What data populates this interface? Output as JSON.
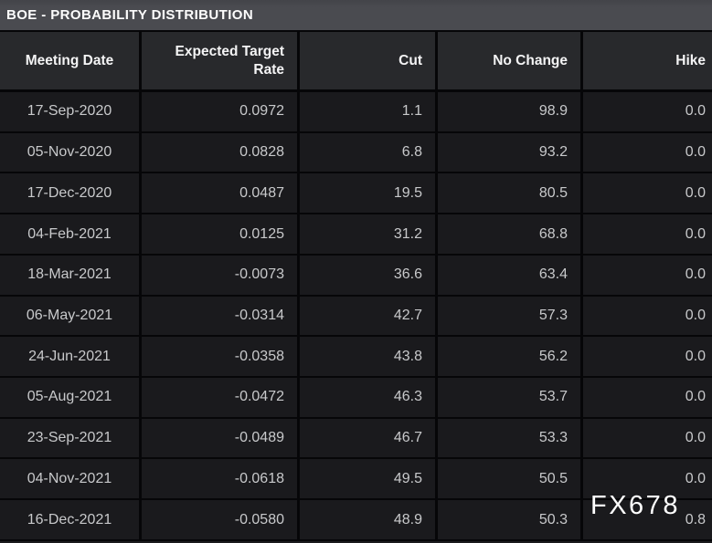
{
  "title": "BOE - PROBABILITY DISTRIBUTION",
  "watermark": "FX678",
  "table": {
    "columns": [
      "Meeting Date",
      "Expected Target Rate",
      "Cut",
      "No Change",
      "Hike"
    ],
    "rows": [
      {
        "meeting_date": "17-Sep-2020",
        "expected_target_rate": "0.0972",
        "cut": "1.1",
        "no_change": "98.9",
        "hike": "0.0"
      },
      {
        "meeting_date": "05-Nov-2020",
        "expected_target_rate": "0.0828",
        "cut": "6.8",
        "no_change": "93.2",
        "hike": "0.0"
      },
      {
        "meeting_date": "17-Dec-2020",
        "expected_target_rate": "0.0487",
        "cut": "19.5",
        "no_change": "80.5",
        "hike": "0.0"
      },
      {
        "meeting_date": "04-Feb-2021",
        "expected_target_rate": "0.0125",
        "cut": "31.2",
        "no_change": "68.8",
        "hike": "0.0"
      },
      {
        "meeting_date": "18-Mar-2021",
        "expected_target_rate": "-0.0073",
        "cut": "36.6",
        "no_change": "63.4",
        "hike": "0.0"
      },
      {
        "meeting_date": "06-May-2021",
        "expected_target_rate": "-0.0314",
        "cut": "42.7",
        "no_change": "57.3",
        "hike": "0.0"
      },
      {
        "meeting_date": "24-Jun-2021",
        "expected_target_rate": "-0.0358",
        "cut": "43.8",
        "no_change": "56.2",
        "hike": "0.0"
      },
      {
        "meeting_date": "05-Aug-2021",
        "expected_target_rate": "-0.0472",
        "cut": "46.3",
        "no_change": "53.7",
        "hike": "0.0"
      },
      {
        "meeting_date": "23-Sep-2021",
        "expected_target_rate": "-0.0489",
        "cut": "46.7",
        "no_change": "53.3",
        "hike": "0.0"
      },
      {
        "meeting_date": "04-Nov-2021",
        "expected_target_rate": "-0.0618",
        "cut": "49.5",
        "no_change": "50.5",
        "hike": "0.0"
      },
      {
        "meeting_date": "16-Dec-2021",
        "expected_target_rate": "-0.0580",
        "cut": "48.9",
        "no_change": "50.3",
        "hike": "0.8"
      }
    ]
  },
  "colors": {
    "title_bar_bg": "#4a4b50",
    "header_bg": "#28292c",
    "row_bg": "#1a1a1d",
    "border": "#060608",
    "header_text": "#f4f4f5",
    "data_text": "#c8c9cb",
    "title_text": "#fdfdfd",
    "watermark_text": "#ffffff"
  }
}
